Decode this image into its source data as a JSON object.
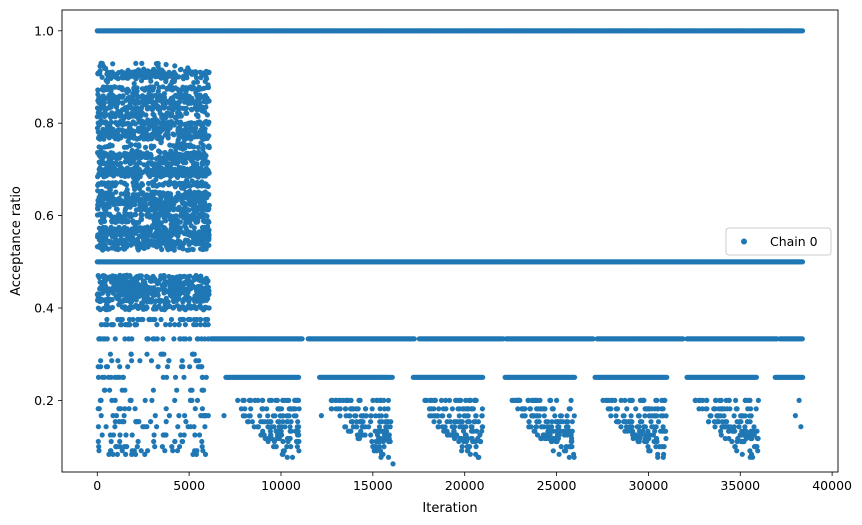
{
  "chart_data": {
    "type": "scatter",
    "xlabel": "Iteration",
    "ylabel": "Acceptance ratio",
    "xlim": [
      -1920,
      40320
    ],
    "ylim": [
      0.045,
      1.045
    ],
    "x_ticks": [
      0,
      5000,
      10000,
      15000,
      20000,
      25000,
      30000,
      35000,
      40000
    ],
    "y_ticks": [
      0.2,
      0.4,
      0.6,
      0.8,
      1.0
    ],
    "y_tick_labels": [
      "0.2",
      "0.4",
      "0.6",
      "0.8",
      "1.0"
    ],
    "grid": false,
    "legend_position": "center-right",
    "marker_color": "#1f77b4",
    "series": [
      {
        "name": "Chain 0",
        "bands": [
          {
            "y": 1.0,
            "x_range": [
              0,
              38400
            ],
            "density": "solid"
          },
          {
            "y": 0.5,
            "x_range": [
              0,
              38400
            ],
            "density": "solid"
          },
          {
            "y": 0.333,
            "x_range": [
              6200,
              38400
            ],
            "density": "solid"
          },
          {
            "y": 0.25,
            "x_range": [
              7000,
              38400
            ],
            "density": "segments"
          },
          {
            "y_range": [
              0.08,
              0.93
            ],
            "x_range": [
              0,
              6100
            ],
            "density": "dense-cluster"
          },
          {
            "y_range": [
              0.09,
              0.2
            ],
            "x_range": [
              7000,
              36000
            ],
            "density": "sparse-triangles"
          }
        ]
      }
    ]
  }
}
